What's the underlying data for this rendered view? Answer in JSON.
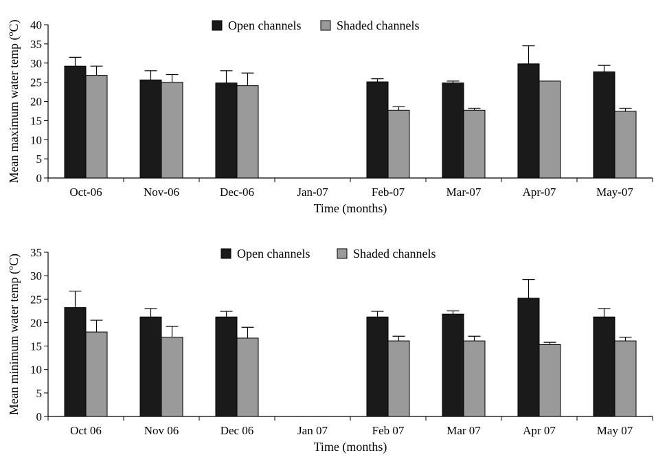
{
  "chart_data": [
    {
      "type": "bar",
      "xlabel": "Time (months)",
      "ylabel": "Mean maximum water temp (°C)",
      "ylabel_parts": [
        "Mean maximum water temp (",
        "o",
        "C)"
      ],
      "ylim": [
        0,
        40
      ],
      "yticks": [
        0,
        5,
        10,
        15,
        20,
        25,
        30,
        35,
        40
      ],
      "grid": false,
      "legend": "top-center",
      "categories": [
        "Oct-06",
        "Nov-06",
        "Dec-06",
        "Jan-07",
        "Feb-07",
        "Mar-07",
        "Apr-07",
        "May-07"
      ],
      "series": [
        {
          "name": "Open channels",
          "color": "#1a1a1a",
          "values": [
            29.2,
            25.6,
            24.8,
            null,
            25.1,
            24.8,
            29.8,
            27.7
          ],
          "error": [
            2.3,
            2.4,
            3.2,
            null,
            0.8,
            0.5,
            4.7,
            1.7
          ]
        },
        {
          "name": "Shaded channels",
          "color": "#9a9a9a",
          "values": [
            26.8,
            25.0,
            24.1,
            null,
            17.7,
            17.7,
            25.3,
            17.4
          ],
          "error": [
            2.4,
            2.0,
            3.3,
            null,
            0.9,
            0.5,
            0.0,
            0.8
          ]
        }
      ]
    },
    {
      "type": "bar",
      "xlabel": "Time (months)",
      "ylabel": "Mean minimum water temp (°C)",
      "ylabel_parts": [
        "Mean minimum water temp (",
        "o",
        "C)"
      ],
      "ylim": [
        0,
        35
      ],
      "yticks": [
        0,
        5,
        10,
        15,
        20,
        25,
        30,
        35
      ],
      "grid": false,
      "legend": "top-center",
      "categories": [
        "Oct 06",
        "Nov 06",
        "Dec 06",
        "Jan 07",
        "Feb 07",
        "Mar 07",
        "Apr 07",
        "May 07"
      ],
      "series": [
        {
          "name": "Open channels",
          "color": "#1a1a1a",
          "values": [
            23.2,
            21.2,
            21.2,
            null,
            21.2,
            21.8,
            25.2,
            21.2
          ],
          "error": [
            3.5,
            1.8,
            1.2,
            null,
            1.2,
            0.7,
            4.0,
            1.8
          ]
        },
        {
          "name": "Shaded channels",
          "color": "#9a9a9a",
          "values": [
            18.0,
            16.9,
            16.7,
            null,
            16.1,
            16.1,
            15.3,
            16.1
          ],
          "error": [
            2.5,
            2.3,
            2.3,
            null,
            1.0,
            1.0,
            0.5,
            0.8
          ]
        }
      ]
    }
  ]
}
